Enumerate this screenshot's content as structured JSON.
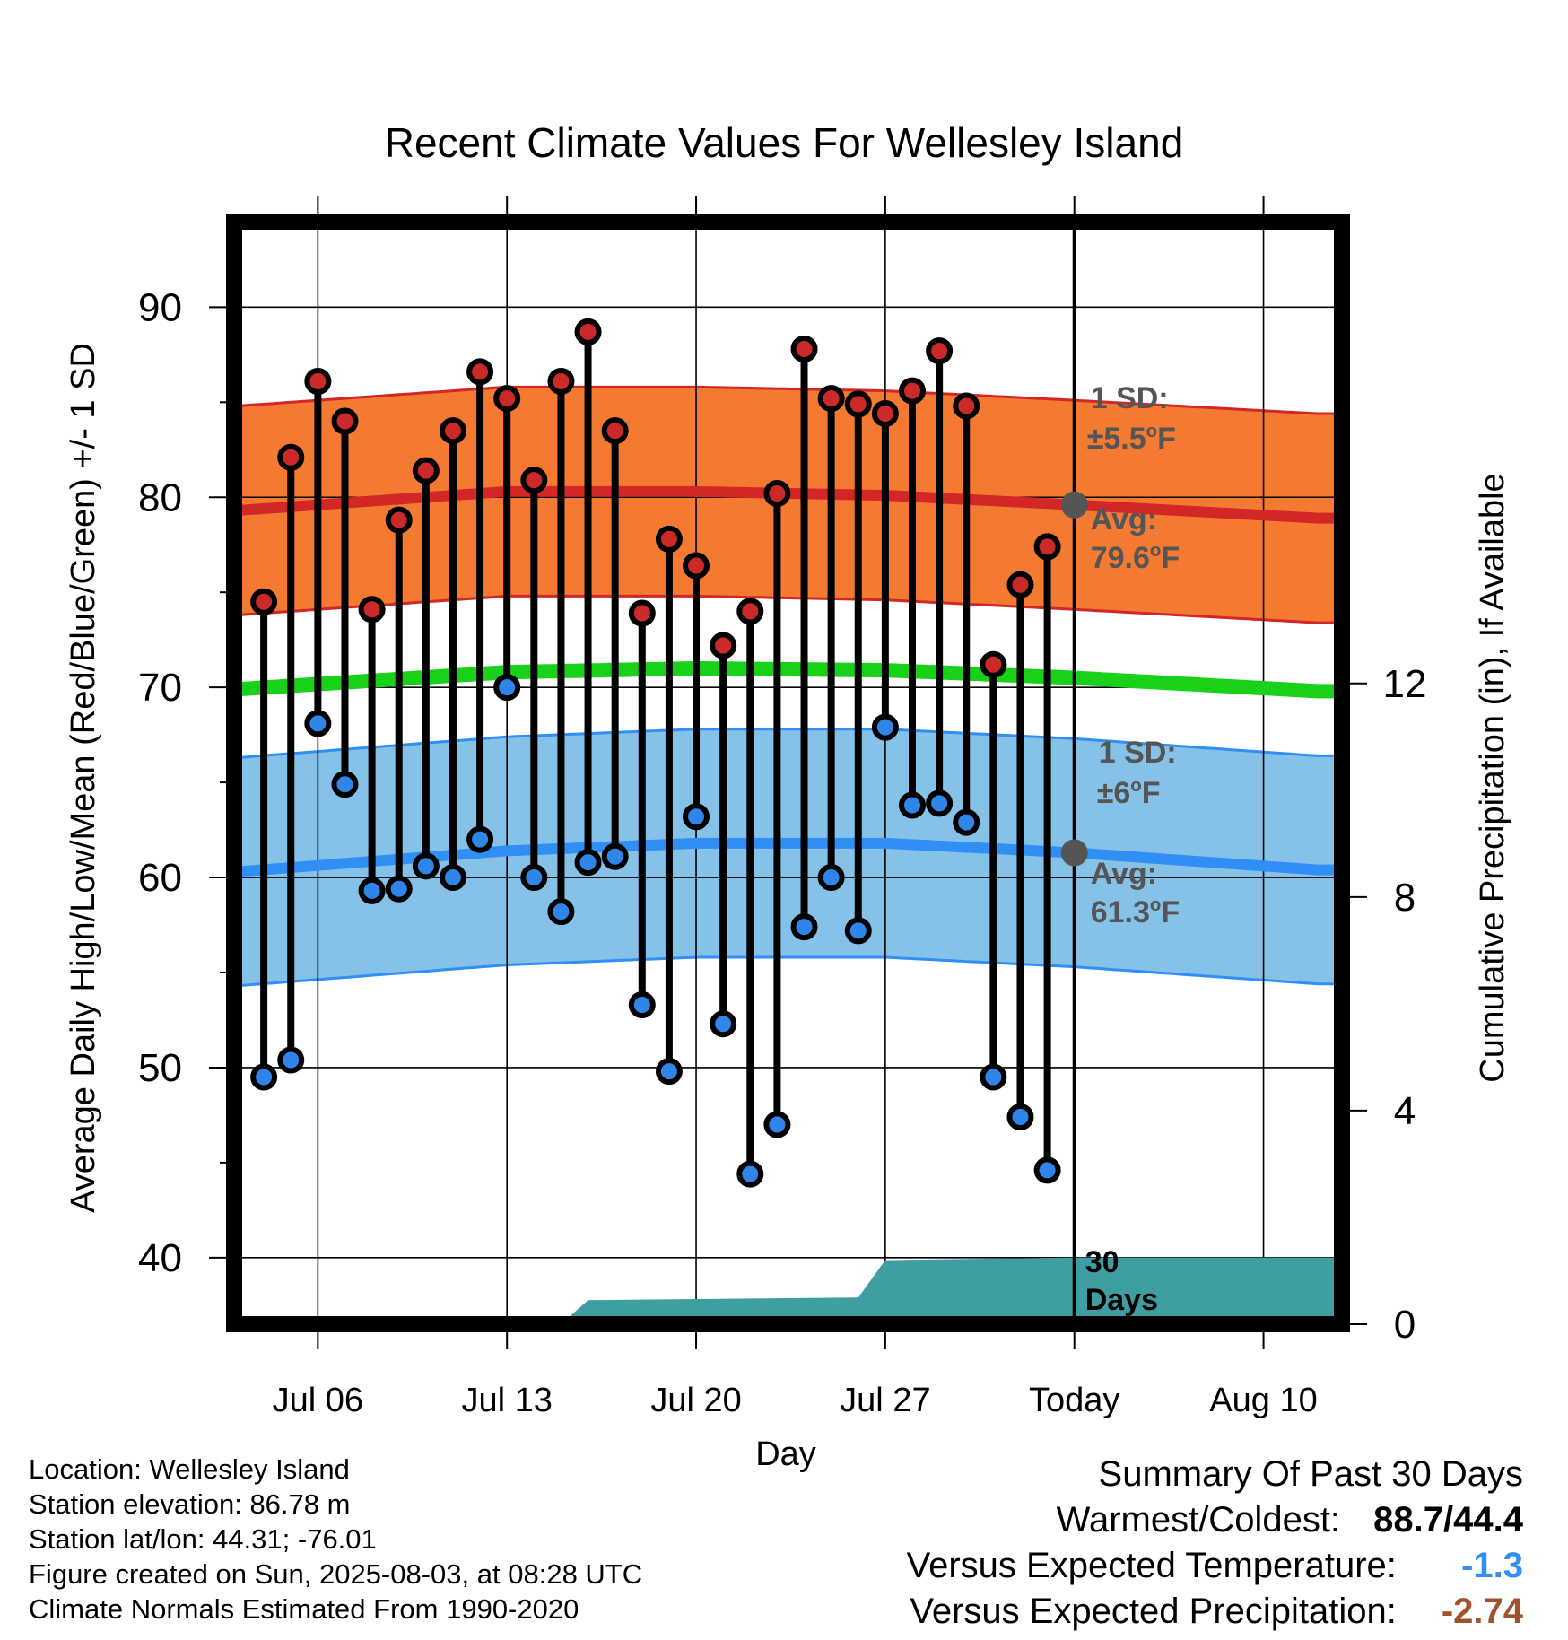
{
  "chart_data": {
    "type": "line",
    "title": "Recent Climate Values For Wellesley Island",
    "xlabel": "Day",
    "ylabel": "Average Daily High/Low/Mean (Red/Blue/Green) +/- 1 SD",
    "y2label": "Cumulative Precipitation (in), If Available",
    "ylim": [
      36.5,
      94.5
    ],
    "y2lim": [
      0,
      20.65
    ],
    "yticks": [
      "40",
      "50",
      "60",
      "70",
      "80",
      "90"
    ],
    "y2ticks": [
      "0",
      "4",
      "8",
      "12"
    ],
    "xticks": [
      "Jul 06",
      "Jul 13",
      "Jul 20",
      "Jul 27",
      "Today",
      "Aug 10"
    ],
    "x_start": "2025-07-03",
    "x_end": "2025-08-12",
    "today": "2025-08-03",
    "grid": true,
    "daily": {
      "dates": [
        "2025-07-04",
        "2025-07-05",
        "2025-07-06",
        "2025-07-07",
        "2025-07-08",
        "2025-07-09",
        "2025-07-10",
        "2025-07-11",
        "2025-07-12",
        "2025-07-13",
        "2025-07-14",
        "2025-07-15",
        "2025-07-16",
        "2025-07-17",
        "2025-07-18",
        "2025-07-19",
        "2025-07-20",
        "2025-07-21",
        "2025-07-22",
        "2025-07-23",
        "2025-07-24",
        "2025-07-25",
        "2025-07-26",
        "2025-07-27",
        "2025-07-28",
        "2025-07-29",
        "2025-07-30",
        "2025-07-31",
        "2025-08-01",
        "2025-08-02"
      ],
      "highs": [
        74.5,
        82.1,
        86.1,
        84.0,
        74.1,
        78.8,
        81.4,
        83.5,
        86.6,
        85.2,
        80.9,
        86.1,
        88.7,
        83.5,
        73.9,
        77.8,
        76.4,
        72.2,
        74.0,
        80.2,
        87.8,
        85.2,
        84.9,
        84.4,
        85.6,
        87.7,
        84.8,
        71.2,
        75.4,
        77.4
      ],
      "lows": [
        49.5,
        50.4,
        68.1,
        64.9,
        59.3,
        59.4,
        60.6,
        60.0,
        62.0,
        70.0,
        60.0,
        58.2,
        60.8,
        61.1,
        53.3,
        49.8,
        63.2,
        52.3,
        44.4,
        47.0,
        57.4,
        60.0,
        57.2,
        67.9,
        63.8,
        63.9,
        62.9,
        49.5,
        47.4,
        44.6
      ]
    },
    "normals": {
      "dates": [
        "2025-07-03",
        "2025-07-13",
        "2025-07-20",
        "2025-07-27",
        "2025-08-03",
        "2025-08-12"
      ],
      "avg_high": [
        79.3,
        80.3,
        80.3,
        80.1,
        79.6,
        78.9
      ],
      "avg_mean": [
        69.9,
        70.8,
        71.0,
        70.9,
        70.5,
        69.8
      ],
      "avg_low": [
        60.3,
        61.4,
        61.8,
        61.8,
        61.3,
        60.4
      ]
    },
    "high_sd": "±5.5°F",
    "low_sd": "±6°F",
    "precip_cumulative": {
      "dates": [
        "2025-07-15",
        "2025-07-16",
        "2025-07-26",
        "2025-07-27",
        "2025-08-03",
        "2025-08-12"
      ],
      "values": [
        0.0,
        0.45,
        0.5,
        1.2,
        1.25,
        1.25
      ]
    },
    "annotations": {
      "high_sd_line1": "1 SD:",
      "high_sd_line2": "±5.5°F",
      "high_avg_line1": "Avg:",
      "high_avg_line2": "79.6°F",
      "low_sd_line1": "1 SD:",
      "low_sd_line2": "±6°F",
      "low_avg_line1": "Avg:",
      "low_avg_line2": "61.3°F",
      "days_line1": "30",
      "days_line2": "Days"
    },
    "colors": {
      "high_band": "#f47a31",
      "high_line": "#d32626",
      "mean_line": "#1ad11a",
      "low_band": "#86c2e8",
      "low_line": "#2f8ff5",
      "precip": "#3f9ea1",
      "high_dot": "#cc2a2a",
      "low_dot": "#2f86e8",
      "annotation": "#555555"
    }
  },
  "footer": {
    "location": "Location: Wellesley Island",
    "elevation": "Station elevation: 86.78 m",
    "latlon": "Station lat/lon: 44.31; -76.01",
    "created": "Figure created on Sun, 2025-08-03, at 08:28 UTC",
    "normals": "Climate Normals Estimated From 1990-2020"
  },
  "summary": {
    "heading": "Summary Of Past 30 Days",
    "warm_cold_label": "Warmest/Coldest:",
    "warm_cold_value": "88.7/44.4",
    "temp_label": "Versus Expected Temperature:",
    "temp_value": "-1.3",
    "temp_color": "#2f8ff5",
    "precip_label": "Versus Expected Precipitation:",
    "precip_value": "-2.74",
    "precip_color": "#a0522d"
  }
}
